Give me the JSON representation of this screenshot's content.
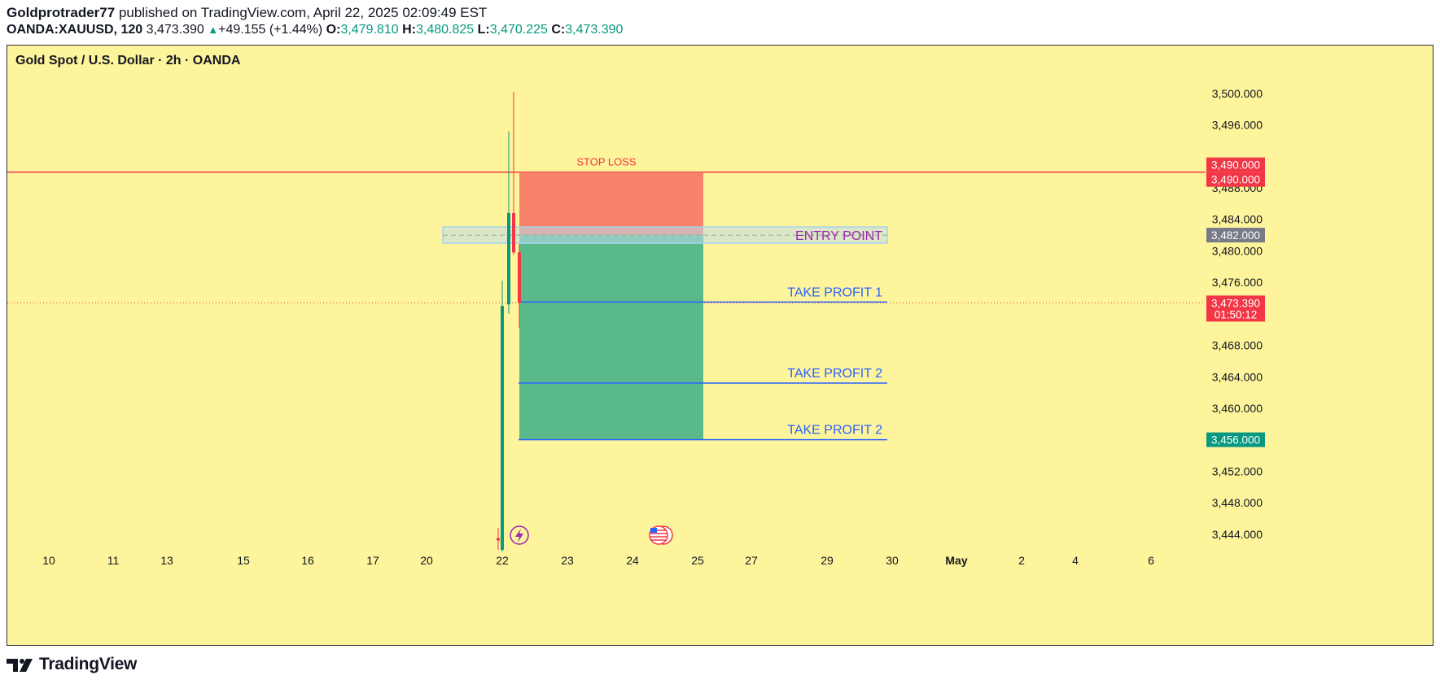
{
  "header": {
    "author": "Goldprotrader77",
    "published": "published on TradingView.com, April 22, 2025 02:09:49 EST",
    "symbol": "OANDA:XAUUSD, 120",
    "last": "3,473.390",
    "change": "+49.155 (+1.44%)",
    "o_label": "O:",
    "o_value": "3,479.810",
    "h_label": "H:",
    "h_value": "3,480.825",
    "l_label": "L:",
    "l_value": "3,470.225",
    "c_label": "C:",
    "c_value": "3,473.390"
  },
  "footer": {
    "brand": "TradingView"
  },
  "chart_data": {
    "type": "candlestick",
    "title": "Gold Spot / U.S. Dollar · 2h · OANDA",
    "ylim": [
      3441.5,
      3503.5
    ],
    "y_ticks": [
      {
        "value": 3500,
        "label": "3,500.000"
      },
      {
        "value": 3496,
        "label": "3,496.000"
      },
      {
        "value": 3488,
        "label": "3,488.000"
      },
      {
        "value": 3484,
        "label": "3,484.000"
      },
      {
        "value": 3480,
        "label": "3,480.000"
      },
      {
        "value": 3476,
        "label": "3,476.000"
      },
      {
        "value": 3468,
        "label": "3,468.000"
      },
      {
        "value": 3464,
        "label": "3,464.000"
      },
      {
        "value": 3460,
        "label": "3,460.000"
      },
      {
        "value": 3452,
        "label": "3,452.000"
      },
      {
        "value": 3448,
        "label": "3,448.000"
      },
      {
        "value": 3444,
        "label": "3,444.000"
      }
    ],
    "x_ticks": [
      "10",
      "11",
      "13",
      "15",
      "16",
      "17",
      "20",
      "22",
      "23",
      "24",
      "25",
      "27",
      "29",
      "30",
      "May",
      "2",
      "4",
      "6"
    ],
    "candles": [
      {
        "open": 3443.5,
        "high": 3444.8,
        "close": 3443.2,
        "low": 3442.0,
        "dir": "down"
      },
      {
        "open": 3442.0,
        "high": 3476.2,
        "close": 3473.0,
        "low": 3441.8,
        "dir": "up"
      },
      {
        "open": 3473.2,
        "high": 3495.2,
        "close": 3484.8,
        "low": 3472.0,
        "dir": "up"
      },
      {
        "open": 3484.8,
        "high": 3500.2,
        "close": 3479.8,
        "low": 3479.5,
        "dir": "down"
      },
      {
        "open": 3479.8,
        "high": 3480.825,
        "close": 3473.39,
        "low": 3470.225,
        "dir": "down"
      }
    ],
    "position": {
      "kind": "short",
      "stop": 3490.0,
      "entry": 3482.0,
      "target": 3456.0
    },
    "annotations": [
      {
        "text": "STOP LOSS",
        "price": 3490.0,
        "color": "#f23645"
      },
      {
        "text": "ENTRY POINT",
        "price": 3482.0,
        "color": "#9c27b0"
      },
      {
        "text": "TAKE PROFIT 1",
        "price": 3473.5,
        "color": "#2962ff"
      },
      {
        "text": "TAKE PROFIT 2",
        "price": 3463.2,
        "color": "#2962ff"
      },
      {
        "text": "TAKE PROFIT 2",
        "price": 3456.0,
        "color": "#2962ff"
      }
    ],
    "price_labels": [
      {
        "text": "3,490.000",
        "price": 3490.0,
        "color": "#f23645",
        "row": 0
      },
      {
        "text": "3,490.000",
        "price": 3490.0,
        "color": "#f23645",
        "row": 1
      },
      {
        "text": "3,482.000",
        "price": 3482.0,
        "color": "#787b86",
        "row": 0
      },
      {
        "text": "3,473.390",
        "price": 3473.39,
        "color": "#f23645",
        "row": 0,
        "sub": "01:50:12"
      },
      {
        "text": "3,456.000",
        "price": 3456.0,
        "color": "#089981",
        "row": 0
      }
    ],
    "horizontal_lines": [
      {
        "price": 3490.0,
        "color": "#f23645",
        "style": "solid"
      },
      {
        "price": 3473.39,
        "color": "#f23645",
        "style": "dotted"
      }
    ],
    "colors": {
      "background": "#fef49b",
      "up": "#089981",
      "down": "#f23645",
      "stop_zone": "#f7836a",
      "target_zone": "#5ab98a",
      "tp_line": "#2962ff",
      "entry_box": "#a7d3f0"
    },
    "event_icons": [
      "lightning-icon",
      "us-flag-icon"
    ]
  }
}
